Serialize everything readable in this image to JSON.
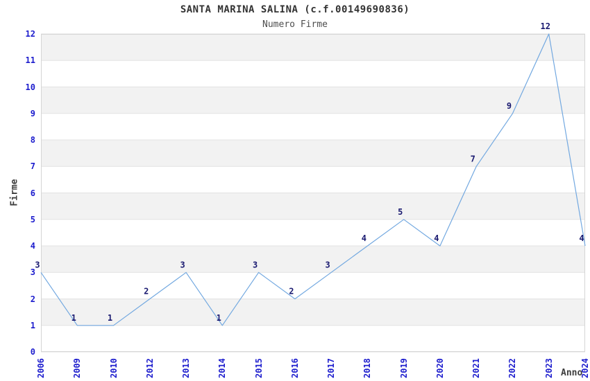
{
  "page": {
    "background": "#ffffff"
  },
  "chart_data": {
    "type": "line",
    "title": "SANTA MARINA SALINA (c.f.00149690836)",
    "subtitle": "Numero Firme",
    "xlabel": "Anno",
    "ylabel": "Firme",
    "categories": [
      "2006",
      "2009",
      "2010",
      "2012",
      "2013",
      "2014",
      "2015",
      "2016",
      "2017",
      "2018",
      "2019",
      "2020",
      "2021",
      "2022",
      "2023",
      "2024"
    ],
    "series": [
      {
        "name": "Numero Firme",
        "values": [
          3,
          1,
          1,
          2,
          3,
          1,
          3,
          2,
          3,
          4,
          5,
          4,
          7,
          9,
          12,
          4
        ]
      }
    ],
    "point_labels_visible": true,
    "ylim": [
      0,
      12
    ],
    "yticks": [
      0,
      1,
      2,
      3,
      4,
      5,
      6,
      7,
      8,
      9,
      10,
      11,
      12
    ],
    "grid": true,
    "legend_position": "none",
    "band_pattern": "alternating horizontal bands, gray on intervals 1-2, 3-4, 5-6, 7-8, 9-10, 11-12",
    "xtick_rotation_degrees": 90,
    "colors": {
      "line": "#72a8e0",
      "tick_label": "#1c1ccd",
      "point_label": "#191970",
      "title": "#333333",
      "subtitle": "#4d4d4d",
      "axis_title": "#3d3d3d",
      "band": "#f2f2f2",
      "gridline": "#e2e2e2",
      "plot_border": "#d5d5d5",
      "background": "#ffffff"
    }
  }
}
